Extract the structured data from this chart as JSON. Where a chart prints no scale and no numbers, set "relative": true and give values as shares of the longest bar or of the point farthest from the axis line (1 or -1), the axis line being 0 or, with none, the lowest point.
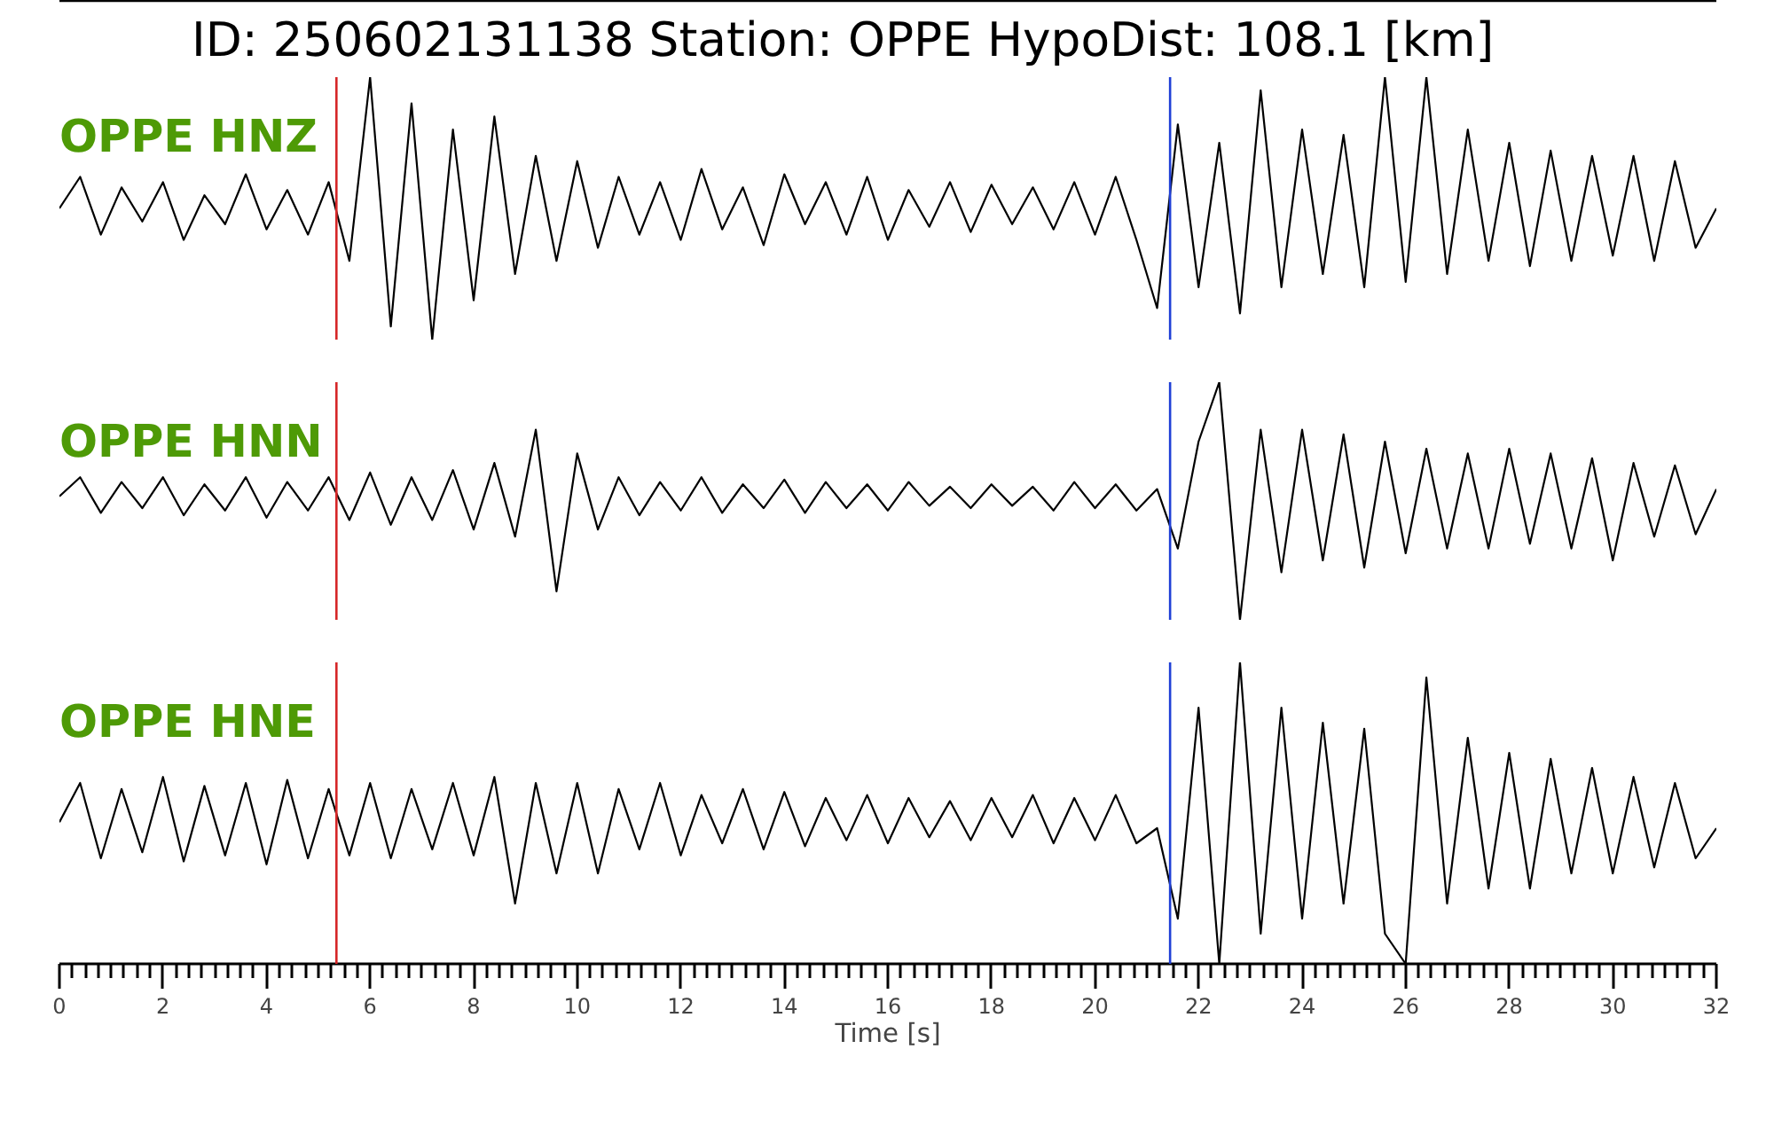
{
  "chart_data": [
    {
      "type": "line",
      "title": "ID: 250602131138   Station: OPPE   HypoDist:   108.1 [km]",
      "relative": true,
      "tick_labels": false,
      "legend": false,
      "grid": false,
      "xlim": [
        0,
        32
      ],
      "x": [
        0,
        0.4,
        0.8,
        1.2,
        1.6,
        2,
        2.4,
        2.8,
        3.2,
        3.6,
        4,
        4.4,
        4.8,
        5.2,
        5.6,
        6,
        6.4,
        6.8,
        7.2,
        7.6,
        8,
        8.4,
        8.8,
        9.2,
        9.6,
        10,
        10.4,
        10.8,
        11.2,
        11.6,
        12,
        12.4,
        12.8,
        13.2,
        13.6,
        14,
        14.4,
        14.8,
        15.2,
        15.6,
        16,
        16.4,
        16.8,
        17.2,
        17.6,
        18,
        18.4,
        18.8,
        19.2,
        19.6,
        20,
        20.4,
        20.8,
        21.2,
        21.6,
        22,
        22.4,
        22.8,
        23.2,
        23.6,
        24,
        24.4,
        24.8,
        25.2,
        25.6,
        26,
        26.4,
        26.8,
        27.2,
        27.6,
        28,
        28.4,
        28.8,
        29.2,
        29.6,
        30,
        30.4,
        30.8,
        31.2,
        31.6,
        32
      ],
      "series": [
        {
          "name": "OPPE HNZ",
          "color": "#000000",
          "values": [
            0.5,
            0.62,
            0.4,
            0.58,
            0.45,
            0.6,
            0.38,
            0.55,
            0.44,
            0.63,
            0.42,
            0.57,
            0.4,
            0.6,
            0.3,
            1.0,
            0.05,
            0.9,
            0.0,
            0.8,
            0.15,
            0.85,
            0.25,
            0.7,
            0.3,
            0.68,
            0.35,
            0.62,
            0.4,
            0.6,
            0.38,
            0.65,
            0.42,
            0.58,
            0.36,
            0.63,
            0.44,
            0.6,
            0.4,
            0.62,
            0.38,
            0.57,
            0.43,
            0.6,
            0.41,
            0.59,
            0.44,
            0.58,
            0.42,
            0.6,
            0.4,
            0.62,
            0.38,
            0.12,
            0.82,
            0.2,
            0.75,
            0.1,
            0.95,
            0.2,
            0.8,
            0.25,
            0.78,
            0.2,
            1.0,
            0.22,
            1.0,
            0.25,
            0.8,
            0.3,
            0.75,
            0.28,
            0.72,
            0.3,
            0.7,
            0.32,
            0.7,
            0.3,
            0.68,
            0.35,
            0.5
          ]
        }
      ],
      "ref_lines": [
        {
          "axis": "x",
          "value": 5.35,
          "color": "#d62728"
        },
        {
          "axis": "x",
          "value": 21.45,
          "color": "#1f3fd6"
        }
      ]
    },
    {
      "type": "line",
      "relative": true,
      "tick_labels": false,
      "legend": false,
      "grid": false,
      "xlim": [
        0,
        32
      ],
      "x": [
        0,
        0.4,
        0.8,
        1.2,
        1.6,
        2,
        2.4,
        2.8,
        3.2,
        3.6,
        4,
        4.4,
        4.8,
        5.2,
        5.6,
        6,
        6.4,
        6.8,
        7.2,
        7.6,
        8,
        8.4,
        8.8,
        9.2,
        9.6,
        10,
        10.4,
        10.8,
        11.2,
        11.6,
        12,
        12.4,
        12.8,
        13.2,
        13.6,
        14,
        14.4,
        14.8,
        15.2,
        15.6,
        16,
        16.4,
        16.8,
        17.2,
        17.6,
        18,
        18.4,
        18.8,
        19.2,
        19.6,
        20,
        20.4,
        20.8,
        21.2,
        21.6,
        22,
        22.4,
        22.8,
        23.2,
        23.6,
        24,
        24.4,
        24.8,
        25.2,
        25.6,
        26,
        26.4,
        26.8,
        27.2,
        27.6,
        28,
        28.4,
        28.8,
        29.2,
        29.6,
        30,
        30.4,
        30.8,
        31.2,
        31.6,
        32
      ],
      "series": [
        {
          "name": "OPPE HNN",
          "color": "#000000",
          "values": [
            0.52,
            0.6,
            0.45,
            0.58,
            0.47,
            0.6,
            0.44,
            0.57,
            0.46,
            0.6,
            0.43,
            0.58,
            0.46,
            0.6,
            0.42,
            0.62,
            0.4,
            0.6,
            0.42,
            0.63,
            0.38,
            0.66,
            0.35,
            0.8,
            0.12,
            0.7,
            0.38,
            0.6,
            0.44,
            0.58,
            0.46,
            0.6,
            0.45,
            0.57,
            0.47,
            0.59,
            0.45,
            0.58,
            0.47,
            0.57,
            0.46,
            0.58,
            0.48,
            0.56,
            0.47,
            0.57,
            0.48,
            0.56,
            0.46,
            0.58,
            0.47,
            0.57,
            0.46,
            0.55,
            0.3,
            0.75,
            1.0,
            0.0,
            0.8,
            0.2,
            0.8,
            0.25,
            0.78,
            0.22,
            0.75,
            0.28,
            0.72,
            0.3,
            0.7,
            0.3,
            0.72,
            0.32,
            0.7,
            0.3,
            0.68,
            0.25,
            0.66,
            0.35,
            0.65,
            0.36,
            0.55
          ]
        }
      ],
      "ref_lines": [
        {
          "axis": "x",
          "value": 5.35,
          "color": "#d62728"
        },
        {
          "axis": "x",
          "value": 21.45,
          "color": "#1f3fd6"
        }
      ]
    },
    {
      "type": "line",
      "relative": true,
      "tick_labels": "x",
      "legend": false,
      "grid": false,
      "xlabel": "Time [s]",
      "xlim": [
        0,
        32
      ],
      "xticks": [
        0,
        {
          "value": 0.25,
          "label": null
        },
        {
          "value": 0.5,
          "label": null
        },
        {
          "value": 0.75,
          "label": null
        },
        {
          "value": 1,
          "label": null
        },
        {
          "value": 1.25,
          "label": null
        },
        {
          "value": 1.5,
          "label": null
        },
        {
          "value": 1.75,
          "label": null
        },
        2,
        {
          "value": 2.25,
          "label": null
        },
        {
          "value": 2.5,
          "label": null
        },
        {
          "value": 2.75,
          "label": null
        },
        {
          "value": 3,
          "label": null
        },
        {
          "value": 3.25,
          "label": null
        },
        {
          "value": 3.5,
          "label": null
        },
        {
          "value": 3.75,
          "label": null
        },
        4,
        {
          "value": 4.25,
          "label": null
        },
        {
          "value": 4.5,
          "label": null
        },
        {
          "value": 4.75,
          "label": null
        },
        {
          "value": 5,
          "label": null
        },
        {
          "value": 5.25,
          "label": null
        },
        {
          "value": 5.5,
          "label": null
        },
        {
          "value": 5.75,
          "label": null
        },
        6,
        {
          "value": 6.25,
          "label": null
        },
        {
          "value": 6.5,
          "label": null
        },
        {
          "value": 6.75,
          "label": null
        },
        {
          "value": 7,
          "label": null
        },
        {
          "value": 7.25,
          "label": null
        },
        {
          "value": 7.5,
          "label": null
        },
        {
          "value": 7.75,
          "label": null
        },
        8,
        {
          "value": 8.25,
          "label": null
        },
        {
          "value": 8.5,
          "label": null
        },
        {
          "value": 8.75,
          "label": null
        },
        {
          "value": 9,
          "label": null
        },
        {
          "value": 9.25,
          "label": null
        },
        {
          "value": 9.5,
          "label": null
        },
        {
          "value": 9.75,
          "label": null
        },
        10,
        {
          "value": 10.25,
          "label": null
        },
        {
          "value": 10.5,
          "label": null
        },
        {
          "value": 10.75,
          "label": null
        },
        {
          "value": 11,
          "label": null
        },
        {
          "value": 11.25,
          "label": null
        },
        {
          "value": 11.5,
          "label": null
        },
        {
          "value": 11.75,
          "label": null
        },
        12,
        {
          "value": 12.25,
          "label": null
        },
        {
          "value": 12.5,
          "label": null
        },
        {
          "value": 12.75,
          "label": null
        },
        {
          "value": 13,
          "label": null
        },
        {
          "value": 13.25,
          "label": null
        },
        {
          "value": 13.5,
          "label": null
        },
        {
          "value": 13.75,
          "label": null
        },
        14,
        {
          "value": 14.25,
          "label": null
        },
        {
          "value": 14.5,
          "label": null
        },
        {
          "value": 14.75,
          "label": null
        },
        {
          "value": 15,
          "label": null
        },
        {
          "value": 15.25,
          "label": null
        },
        {
          "value": 15.5,
          "label": null
        },
        {
          "value": 15.75,
          "label": null
        },
        16,
        {
          "value": 16.25,
          "label": null
        },
        {
          "value": 16.5,
          "label": null
        },
        {
          "value": 16.75,
          "label": null
        },
        {
          "value": 17,
          "label": null
        },
        {
          "value": 17.25,
          "label": null
        },
        {
          "value": 17.5,
          "label": null
        },
        {
          "value": 17.75,
          "label": null
        },
        18,
        {
          "value": 18.25,
          "label": null
        },
        {
          "value": 18.5,
          "label": null
        },
        {
          "value": 18.75,
          "label": null
        },
        {
          "value": 19,
          "label": null
        },
        {
          "value": 19.25,
          "label": null
        },
        {
          "value": 19.5,
          "label": null
        },
        {
          "value": 19.75,
          "label": null
        },
        20,
        {
          "value": 20.25,
          "label": null
        },
        {
          "value": 20.5,
          "label": null
        },
        {
          "value": 20.75,
          "label": null
        },
        {
          "value": 21,
          "label": null
        },
        {
          "value": 21.25,
          "label": null
        },
        {
          "value": 21.5,
          "label": null
        },
        {
          "value": 21.75,
          "label": null
        },
        22,
        {
          "value": 22.25,
          "label": null
        },
        {
          "value": 22.5,
          "label": null
        },
        {
          "value": 22.75,
          "label": null
        },
        {
          "value": 23,
          "label": null
        },
        {
          "value": 23.25,
          "label": null
        },
        {
          "value": 23.5,
          "label": null
        },
        {
          "value": 23.75,
          "label": null
        },
        24,
        {
          "value": 24.25,
          "label": null
        },
        {
          "value": 24.5,
          "label": null
        },
        {
          "value": 24.75,
          "label": null
        },
        {
          "value": 25,
          "label": null
        },
        {
          "value": 25.25,
          "label": null
        },
        {
          "value": 25.5,
          "label": null
        },
        {
          "value": 25.75,
          "label": null
        },
        26,
        {
          "value": 26.25,
          "label": null
        },
        {
          "value": 26.5,
          "label": null
        },
        {
          "value": 26.75,
          "label": null
        },
        {
          "value": 27,
          "label": null
        },
        {
          "value": 27.25,
          "label": null
        },
        {
          "value": 27.5,
          "label": null
        },
        {
          "value": 27.75,
          "label": null
        },
        28,
        {
          "value": 28.25,
          "label": null
        },
        {
          "value": 28.5,
          "label": null
        },
        {
          "value": 28.75,
          "label": null
        },
        {
          "value": 29,
          "label": null
        },
        {
          "value": 29.25,
          "label": null
        },
        {
          "value": 29.5,
          "label": null
        },
        {
          "value": 29.75,
          "label": null
        },
        30,
        {
          "value": 30.25,
          "label": null
        },
        {
          "value": 30.5,
          "label": null
        },
        {
          "value": 30.75,
          "label": null
        },
        {
          "value": 31,
          "label": null
        },
        {
          "value": 31.25,
          "label": null
        },
        {
          "value": 31.5,
          "label": null
        },
        {
          "value": 31.75,
          "label": null
        },
        32
      ],
      "x": [
        0,
        0.4,
        0.8,
        1.2,
        1.6,
        2,
        2.4,
        2.8,
        3.2,
        3.6,
        4,
        4.4,
        4.8,
        5.2,
        5.6,
        6,
        6.4,
        6.8,
        7.2,
        7.6,
        8,
        8.4,
        8.8,
        9.2,
        9.6,
        10,
        10.4,
        10.8,
        11.2,
        11.6,
        12,
        12.4,
        12.8,
        13.2,
        13.6,
        14,
        14.4,
        14.8,
        15.2,
        15.6,
        16,
        16.4,
        16.8,
        17.2,
        17.6,
        18,
        18.4,
        18.8,
        19.2,
        19.6,
        20,
        20.4,
        20.8,
        21.2,
        21.6,
        22,
        22.4,
        22.8,
        23.2,
        23.6,
        24,
        24.4,
        24.8,
        25.2,
        25.6,
        26,
        26.4,
        26.8,
        27.2,
        27.6,
        28,
        28.4,
        28.8,
        29.2,
        29.6,
        30,
        30.4,
        30.8,
        31.2,
        31.6,
        32
      ],
      "series": [
        {
          "name": "OPPE HNE",
          "color": "#000000",
          "values": [
            0.47,
            0.6,
            0.35,
            0.58,
            0.37,
            0.62,
            0.34,
            0.59,
            0.36,
            0.6,
            0.33,
            0.61,
            0.35,
            0.58,
            0.36,
            0.6,
            0.35,
            0.58,
            0.38,
            0.6,
            0.36,
            0.62,
            0.2,
            0.6,
            0.3,
            0.6,
            0.3,
            0.58,
            0.38,
            0.6,
            0.36,
            0.56,
            0.4,
            0.58,
            0.38,
            0.57,
            0.39,
            0.55,
            0.41,
            0.56,
            0.4,
            0.55,
            0.42,
            0.54,
            0.41,
            0.55,
            0.42,
            0.56,
            0.4,
            0.55,
            0.41,
            0.56,
            0.4,
            0.45,
            0.15,
            0.85,
            0.0,
            1.0,
            0.1,
            0.85,
            0.15,
            0.8,
            0.2,
            0.78,
            0.1,
            0.0,
            0.95,
            0.2,
            0.75,
            0.25,
            0.7,
            0.25,
            0.68,
            0.3,
            0.65,
            0.3,
            0.62,
            0.32,
            0.6,
            0.35,
            0.45
          ]
        }
      ],
      "ref_lines": [
        {
          "axis": "x",
          "value": 5.35,
          "color": "#d62728"
        },
        {
          "axis": "x",
          "value": 21.45,
          "color": "#1f3fd6"
        }
      ]
    }
  ]
}
